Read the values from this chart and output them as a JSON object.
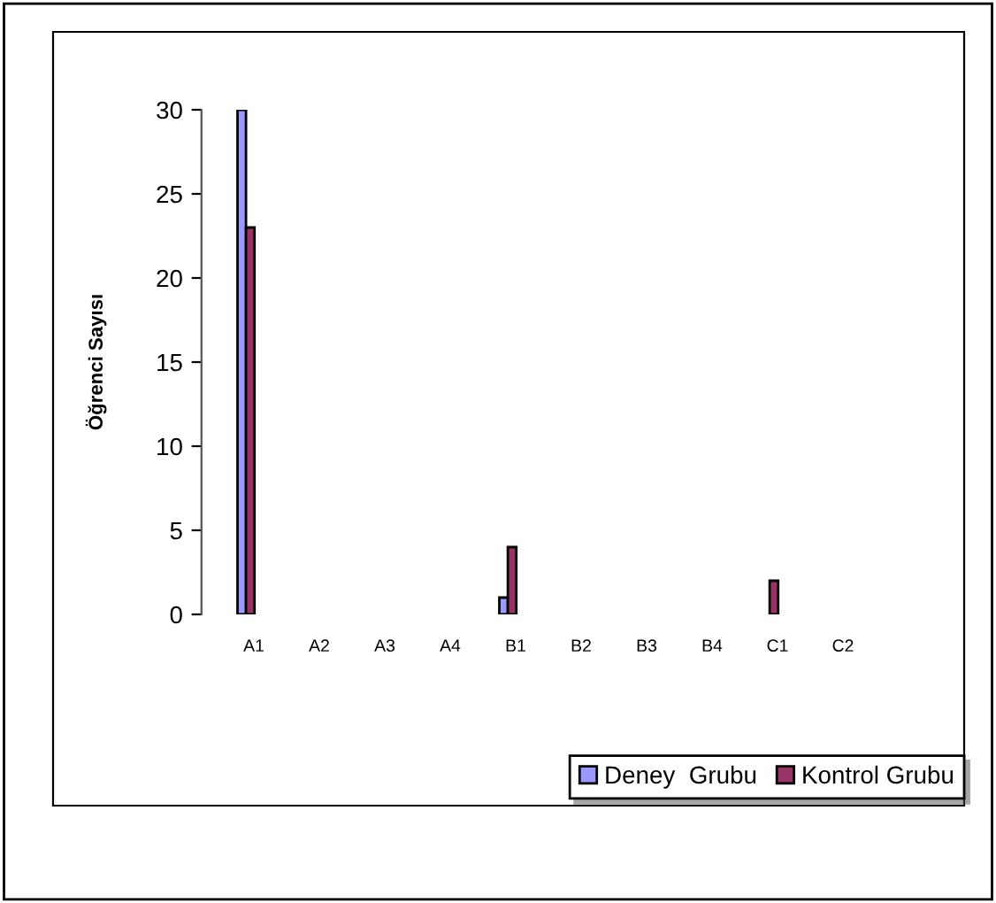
{
  "chart_data": {
    "type": "bar",
    "ylabel": "Öğrenci Sayısı",
    "categories": [
      "A1",
      "A2",
      "A3",
      "A4",
      "B1",
      "B2",
      "B3",
      "B4",
      "C1",
      "C2"
    ],
    "series": [
      {
        "name": "Deney  Grubu",
        "color": "#9999ff",
        "values": [
          30,
          null,
          null,
          null,
          1,
          null,
          null,
          null,
          null,
          null
        ]
      },
      {
        "name": "Kontrol Grubu",
        "color": "#993366",
        "values": [
          23,
          null,
          null,
          null,
          4,
          null,
          null,
          null,
          2,
          null
        ]
      }
    ],
    "ylim": [
      0,
      30
    ],
    "yticks": [
      0,
      5,
      10,
      15,
      20,
      25,
      30
    ],
    "grid": false,
    "legend": "bottom right"
  }
}
